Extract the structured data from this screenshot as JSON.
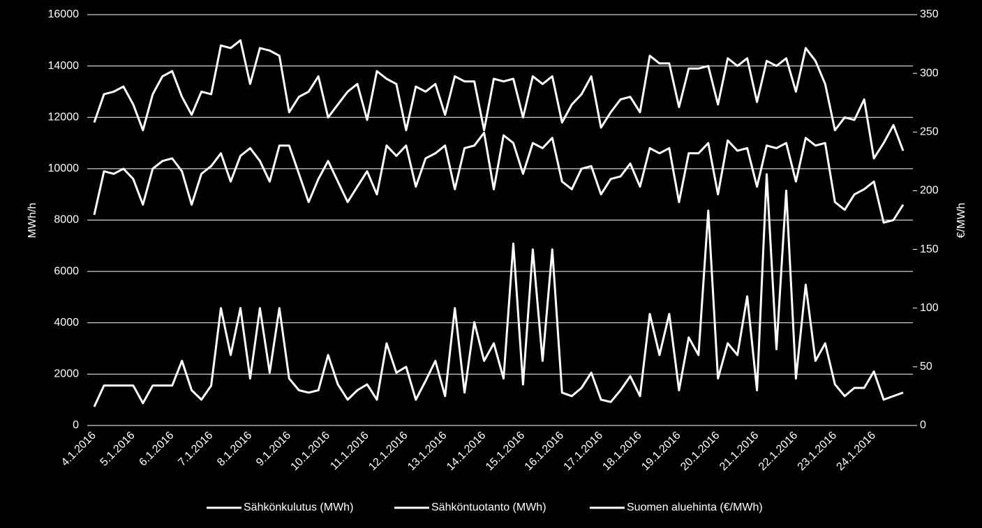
{
  "chart_data": {
    "type": "line",
    "ylabel": "MWh/h",
    "y2label": "€/MWh",
    "categories": [
      "4.1.2016",
      null,
      null,
      null,
      "5.1.2016",
      null,
      null,
      null,
      "6.1.2016",
      null,
      null,
      null,
      "7.1.2016",
      null,
      null,
      null,
      "8.1.2016",
      null,
      null,
      null,
      "9.1.2016",
      null,
      null,
      null,
      "10.1.2016",
      null,
      null,
      null,
      "11.1.2016",
      null,
      null,
      null,
      "12.1.2016",
      null,
      null,
      null,
      "13.1.2016",
      null,
      null,
      null,
      "14.1.2016",
      null,
      null,
      null,
      "15.1.2016",
      null,
      null,
      null,
      "16.1.2016",
      null,
      null,
      null,
      "17.1.2016",
      null,
      null,
      null,
      "18.1.2016",
      null,
      null,
      null,
      "19.1.2016",
      null,
      null,
      null,
      "20.1.2016",
      null,
      null,
      null,
      "21.1.2016",
      null,
      null,
      null,
      "22.1.2016",
      null,
      null,
      null,
      "23.1.2016",
      null,
      null,
      null,
      "24.1.2016",
      null,
      null,
      null
    ],
    "series": [
      {
        "name": "Sähkönkulutus (MWh)",
        "color": "#ffffff",
        "values": [
          11800,
          12900,
          13000,
          13200,
          12500,
          11500,
          12900,
          13600,
          13800,
          12800,
          12100,
          13000,
          12900,
          14800,
          14700,
          15000,
          13300,
          14700,
          14600,
          14400,
          12200,
          12800,
          13000,
          13600,
          12000,
          12500,
          13000,
          13300,
          11900,
          13800,
          13500,
          13300,
          11500,
          13200,
          13000,
          13300,
          12100,
          13600,
          13400,
          13400,
          11500,
          13500,
          13400,
          13500,
          12000,
          13600,
          13300,
          13600,
          11800,
          12500,
          12900,
          13600,
          11600,
          12200,
          12700,
          12800,
          12200,
          14400,
          14100,
          14100,
          12400,
          13900,
          13900,
          14000,
          12500,
          14300,
          14000,
          14300,
          12600,
          14200,
          14000,
          14300,
          13000,
          14700,
          14200,
          13300,
          11500,
          12000,
          11900,
          12700,
          10400,
          11000,
          11700,
          10700
        ]
      },
      {
        "name": "Sähköntuotanto (MWh)",
        "color": "#ffffff",
        "values": [
          8200,
          9900,
          9800,
          10000,
          9600,
          8600,
          10000,
          10300,
          10400,
          9900,
          8600,
          9800,
          10100,
          10600,
          9500,
          10500,
          10800,
          10300,
          9500,
          10900,
          10900,
          9800,
          8700,
          9600,
          10300,
          9500,
          8700,
          9300,
          9900,
          9000,
          10900,
          10500,
          10900,
          9300,
          10400,
          10600,
          10900,
          9200,
          10800,
          10900,
          11400,
          9200,
          11300,
          11000,
          9800,
          11000,
          10800,
          11200,
          9500,
          9200,
          10000,
          10100,
          9000,
          9600,
          9700,
          10200,
          9300,
          10800,
          10600,
          10800,
          8700,
          10600,
          10600,
          11000,
          9000,
          11100,
          10700,
          10800,
          9300,
          10900,
          10800,
          11000,
          9500,
          11200,
          10900,
          11000,
          8700,
          8400,
          9000,
          9200,
          9500,
          7900,
          8000,
          8600
        ]
      },
      {
        "name": "Suomen aluehinta (€/MWh)",
        "color": "#ffffff",
        "axis": "y2",
        "values": [
          16,
          34,
          34,
          34,
          34,
          19,
          34,
          34,
          34,
          55,
          30,
          22,
          34,
          100,
          60,
          100,
          40,
          100,
          45,
          100,
          40,
          30,
          28,
          30,
          60,
          35,
          22,
          30,
          35,
          22,
          70,
          45,
          50,
          22,
          38,
          55,
          25,
          100,
          28,
          88,
          55,
          70,
          40,
          155,
          35,
          150,
          55,
          150,
          28,
          25,
          32,
          45,
          22,
          20,
          30,
          42,
          25,
          95,
          60,
          95,
          30,
          75,
          60,
          183,
          40,
          70,
          60,
          110,
          30,
          214,
          65,
          200,
          40,
          120,
          55,
          70,
          35,
          25,
          32,
          32,
          46,
          22,
          25,
          28
        ]
      }
    ],
    "ylim": [
      0,
      16000
    ],
    "yticks": [
      0,
      2000,
      4000,
      6000,
      8000,
      10000,
      12000,
      14000,
      16000
    ],
    "y2lim": [
      0,
      350
    ],
    "y2ticks": [
      0,
      50,
      100,
      150,
      200,
      250,
      300,
      350
    ],
    "grid": true,
    "legend": "bottom"
  }
}
